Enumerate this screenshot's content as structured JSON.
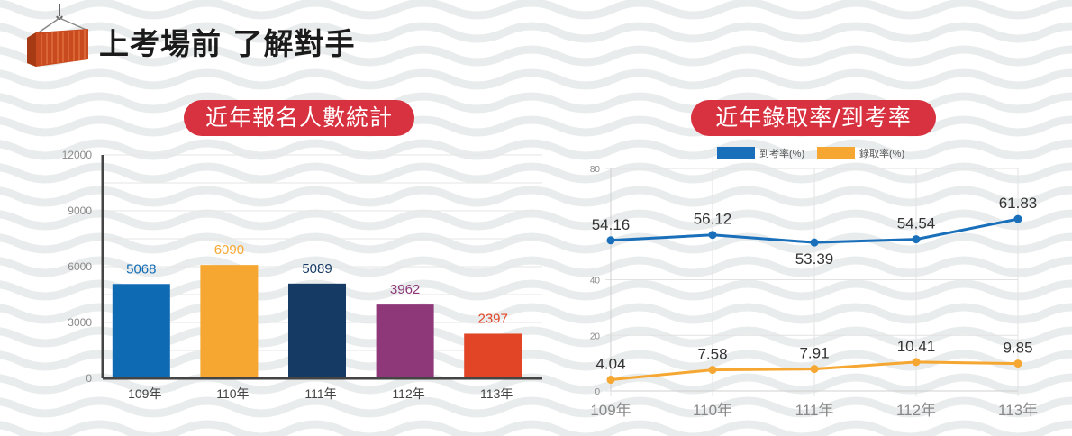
{
  "header": {
    "title": "上考場前 了解對手"
  },
  "colors": {
    "pill": "#d8313f",
    "blue": "#1a6fba",
    "orange": "#f5a731"
  },
  "chart_data": [
    {
      "type": "bar",
      "title": "近年報名人數統計",
      "categories": [
        "109年",
        "110年",
        "111年",
        "112年",
        "113年"
      ],
      "values": [
        5068,
        6090,
        5089,
        3962,
        2397
      ],
      "colors": [
        "#0f6ab4",
        "#f5a731",
        "#153a64",
        "#8e3779",
        "#e24426"
      ],
      "yticks": [
        "0",
        "3000",
        "6000",
        "9000",
        "12000"
      ],
      "ylim": [
        0,
        12000
      ]
    },
    {
      "type": "line",
      "title": "近年錄取率/到考率",
      "categories": [
        "109年",
        "110年",
        "111年",
        "112年",
        "113年"
      ],
      "series": [
        {
          "name": "到考率(%)",
          "values": [
            54.16,
            56.12,
            53.39,
            54.54,
            61.83
          ],
          "labels": [
            "54.16",
            "56.12",
            "53.39",
            "54.54",
            "61.83"
          ],
          "color": "#1a6fba"
        },
        {
          "name": "錄取率(%)",
          "values": [
            4.04,
            7.58,
            7.91,
            10.41,
            9.85
          ],
          "labels": [
            "4.04",
            "7.58",
            "7.91",
            "10.41",
            "9.85"
          ],
          "color": "#f5a731"
        }
      ],
      "yticks": [
        "0",
        "20",
        "40",
        "80"
      ],
      "ytick_values": [
        0,
        20,
        40,
        80
      ],
      "ylim": [
        0,
        80
      ],
      "legend": "top"
    }
  ]
}
